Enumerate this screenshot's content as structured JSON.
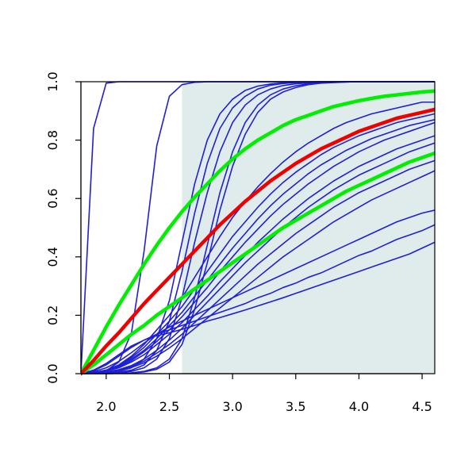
{
  "chart_data": {
    "type": "line",
    "title": "",
    "xlabel": "",
    "ylabel": "",
    "xlim": [
      1.8,
      4.6
    ],
    "ylim": [
      0,
      1
    ],
    "x_ticks": [
      2.0,
      2.5,
      3.0,
      3.5,
      4.0,
      4.5
    ],
    "x_tick_labels": [
      "2.0",
      "2.5",
      "3.0",
      "3.5",
      "4.0",
      "4.5"
    ],
    "y_ticks": [
      0.0,
      0.2,
      0.4,
      0.6,
      0.8,
      1.0
    ],
    "y_tick_labels": [
      "0.0",
      "0.2",
      "0.4",
      "0.6",
      "0.8",
      "1.0"
    ],
    "grid": false,
    "legend": "none",
    "shaded_region": {
      "x": [
        2.6,
        4.6
      ],
      "y": [
        0,
        1
      ],
      "color": "#e0ecec"
    },
    "x": [
      1.8,
      1.9,
      2.0,
      2.1,
      2.2,
      2.3,
      2.4,
      2.5,
      2.6,
      2.7,
      2.8,
      2.9,
      3.0,
      3.1,
      3.2,
      3.3,
      3.4,
      3.5,
      3.6,
      3.7,
      3.8,
      3.9,
      4.0,
      4.1,
      4.2,
      4.3,
      4.4,
      4.5,
      4.6
    ],
    "series": [
      {
        "color": "#1f1fd6",
        "width": 1.6,
        "values": [
          0,
          0.84,
          0.995,
          1,
          1,
          1,
          1,
          1,
          1,
          1,
          1,
          1,
          1,
          1,
          1,
          1,
          1,
          1,
          1,
          1,
          1,
          1,
          1,
          1,
          1,
          1,
          1,
          1,
          1
        ]
      },
      {
        "color": "#1f1fd6",
        "width": 1.6,
        "values": [
          0,
          0.002,
          0.01,
          0.04,
          0.14,
          0.42,
          0.78,
          0.95,
          0.99,
          0.998,
          1,
          1,
          1,
          1,
          1,
          1,
          1,
          1,
          1,
          1,
          1,
          1,
          1,
          1,
          1,
          1,
          1,
          1,
          1
        ]
      },
      {
        "color": "#1f1fd6",
        "width": 1.6,
        "values": [
          0,
          0.001,
          0.003,
          0.008,
          0.02,
          0.05,
          0.12,
          0.25,
          0.45,
          0.65,
          0.8,
          0.89,
          0.94,
          0.97,
          0.985,
          0.992,
          0.996,
          0.998,
          0.999,
          1,
          1,
          1,
          1,
          1,
          1,
          1,
          1,
          1,
          1
        ]
      },
      {
        "color": "#1f1fd6",
        "width": 1.6,
        "values": [
          0,
          0.001,
          0.002,
          0.005,
          0.012,
          0.03,
          0.08,
          0.18,
          0.35,
          0.55,
          0.72,
          0.84,
          0.91,
          0.95,
          0.975,
          0.988,
          0.994,
          0.997,
          0.999,
          1,
          1,
          1,
          1,
          1,
          1,
          1,
          1,
          1,
          1
        ]
      },
      {
        "color": "#1f1fd6",
        "width": 1.6,
        "values": [
          0,
          0.001,
          0.002,
          0.004,
          0.008,
          0.02,
          0.05,
          0.12,
          0.26,
          0.45,
          0.62,
          0.76,
          0.86,
          0.92,
          0.955,
          0.975,
          0.987,
          0.993,
          0.996,
          0.998,
          0.999,
          1,
          1,
          1,
          1,
          1,
          1,
          1,
          1
        ]
      },
      {
        "color": "#1f1fd6",
        "width": 1.6,
        "values": [
          0,
          0.004,
          0.012,
          0.03,
          0.06,
          0.1,
          0.15,
          0.2,
          0.26,
          0.33,
          0.4,
          0.47,
          0.535,
          0.59,
          0.64,
          0.685,
          0.725,
          0.76,
          0.79,
          0.815,
          0.84,
          0.86,
          0.875,
          0.89,
          0.9,
          0.91,
          0.92,
          0.93,
          0.93
        ]
      },
      {
        "color": "#1f1fd6",
        "width": 1.6,
        "values": [
          0,
          0.004,
          0.012,
          0.028,
          0.055,
          0.09,
          0.135,
          0.18,
          0.23,
          0.29,
          0.35,
          0.41,
          0.47,
          0.52,
          0.57,
          0.615,
          0.655,
          0.69,
          0.72,
          0.75,
          0.775,
          0.795,
          0.815,
          0.83,
          0.845,
          0.86,
          0.87,
          0.88,
          0.89
        ]
      },
      {
        "color": "#1f1fd6",
        "width": 1.6,
        "values": [
          0,
          0.004,
          0.011,
          0.025,
          0.05,
          0.08,
          0.12,
          0.165,
          0.21,
          0.265,
          0.32,
          0.375,
          0.43,
          0.48,
          0.53,
          0.575,
          0.615,
          0.65,
          0.685,
          0.715,
          0.74,
          0.765,
          0.785,
          0.805,
          0.82,
          0.835,
          0.85,
          0.86,
          0.87
        ]
      },
      {
        "color": "#1f1fd6",
        "width": 1.6,
        "values": [
          0,
          0.003,
          0.01,
          0.022,
          0.045,
          0.075,
          0.11,
          0.15,
          0.195,
          0.245,
          0.295,
          0.35,
          0.4,
          0.45,
          0.495,
          0.54,
          0.58,
          0.615,
          0.65,
          0.68,
          0.71,
          0.735,
          0.76,
          0.78,
          0.8,
          0.815,
          0.83,
          0.845,
          0.86
        ]
      },
      {
        "color": "#1f1fd6",
        "width": 1.6,
        "values": [
          0,
          0.003,
          0.009,
          0.02,
          0.04,
          0.065,
          0.1,
          0.135,
          0.175,
          0.22,
          0.265,
          0.315,
          0.36,
          0.405,
          0.45,
          0.49,
          0.53,
          0.565,
          0.6,
          0.63,
          0.66,
          0.685,
          0.71,
          0.73,
          0.75,
          0.77,
          0.785,
          0.8,
          0.815
        ]
      },
      {
        "color": "#1f1fd6",
        "width": 1.6,
        "values": [
          0,
          0.002,
          0.006,
          0.014,
          0.028,
          0.05,
          0.08,
          0.115,
          0.155,
          0.2,
          0.245,
          0.29,
          0.335,
          0.38,
          0.42,
          0.46,
          0.5,
          0.535,
          0.57,
          0.6,
          0.63,
          0.655,
          0.68,
          0.7,
          0.72,
          0.74,
          0.76,
          0.775,
          0.79
        ]
      },
      {
        "color": "#1f1fd6",
        "width": 1.6,
        "values": [
          0,
          0.002,
          0.005,
          0.012,
          0.024,
          0.043,
          0.07,
          0.1,
          0.135,
          0.175,
          0.215,
          0.255,
          0.295,
          0.335,
          0.375,
          0.41,
          0.445,
          0.48,
          0.51,
          0.54,
          0.57,
          0.595,
          0.62,
          0.64,
          0.66,
          0.68,
          0.7,
          0.715,
          0.73
        ]
      },
      {
        "color": "#1f1fd6",
        "width": 1.6,
        "values": [
          0,
          0.002,
          0.005,
          0.011,
          0.021,
          0.037,
          0.06,
          0.088,
          0.12,
          0.155,
          0.19,
          0.225,
          0.26,
          0.295,
          0.33,
          0.365,
          0.4,
          0.43,
          0.46,
          0.49,
          0.52,
          0.545,
          0.57,
          0.595,
          0.615,
          0.635,
          0.655,
          0.675,
          0.695
        ]
      },
      {
        "color": "#1f1fd6",
        "width": 1.6,
        "values": [
          0,
          0.007,
          0.02,
          0.042,
          0.072,
          0.105,
          0.135,
          0.16,
          0.18,
          0.2,
          0.22,
          0.24,
          0.26,
          0.28,
          0.3,
          0.32,
          0.34,
          0.36,
          0.38,
          0.4,
          0.42,
          0.44,
          0.46,
          0.48,
          0.5,
          0.52,
          0.535,
          0.55,
          0.56
        ]
      },
      {
        "color": "#1f1fd6",
        "width": 1.6,
        "values": [
          0,
          0.01,
          0.03,
          0.06,
          0.09,
          0.115,
          0.135,
          0.15,
          0.165,
          0.18,
          0.195,
          0.21,
          0.225,
          0.24,
          0.26,
          0.275,
          0.295,
          0.31,
          0.33,
          0.345,
          0.365,
          0.385,
          0.405,
          0.42,
          0.44,
          0.46,
          0.475,
          0.49,
          0.51
        ]
      },
      {
        "color": "#1f1fd6",
        "width": 1.6,
        "values": [
          0,
          0.012,
          0.035,
          0.065,
          0.095,
          0.115,
          0.13,
          0.14,
          0.152,
          0.165,
          0.18,
          0.192,
          0.205,
          0.218,
          0.232,
          0.246,
          0.26,
          0.275,
          0.29,
          0.305,
          0.32,
          0.335,
          0.35,
          0.365,
          0.38,
          0.395,
          0.41,
          0.43,
          0.45
        ]
      },
      {
        "color": "#1f1fd6",
        "width": 1.6,
        "values": [
          0,
          0.0,
          0.0,
          0.001,
          0.003,
          0.008,
          0.02,
          0.05,
          0.12,
          0.26,
          0.44,
          0.62,
          0.76,
          0.86,
          0.92,
          0.955,
          0.975,
          0.986,
          0.993,
          0.996,
          0.998,
          0.999,
          1,
          1,
          1,
          1,
          1,
          1,
          1
        ]
      },
      {
        "color": "#1f1fd6",
        "width": 1.6,
        "values": [
          0,
          0.0,
          0.0,
          0.001,
          0.002,
          0.006,
          0.015,
          0.04,
          0.1,
          0.22,
          0.38,
          0.56,
          0.71,
          0.82,
          0.895,
          0.94,
          0.965,
          0.98,
          0.99,
          0.995,
          0.997,
          0.999,
          1,
          1,
          1,
          1,
          1,
          1,
          1
        ]
      },
      {
        "color": "#00ee00",
        "width": 4.5,
        "values": [
          0,
          0.08,
          0.16,
          0.235,
          0.305,
          0.375,
          0.44,
          0.5,
          0.555,
          0.605,
          0.65,
          0.695,
          0.735,
          0.77,
          0.8,
          0.825,
          0.85,
          0.87,
          0.885,
          0.9,
          0.915,
          0.925,
          0.935,
          0.943,
          0.95,
          0.955,
          0.96,
          0.965,
          0.968
        ]
      },
      {
        "color": "#00ee00",
        "width": 4.5,
        "values": [
          0,
          0.03,
          0.065,
          0.1,
          0.135,
          0.165,
          0.2,
          0.23,
          0.26,
          0.29,
          0.32,
          0.35,
          0.38,
          0.41,
          0.44,
          0.47,
          0.5,
          0.525,
          0.55,
          0.575,
          0.6,
          0.625,
          0.645,
          0.665,
          0.685,
          0.705,
          0.725,
          0.74,
          0.755
        ]
      },
      {
        "color": "#ee0000",
        "width": 4.5,
        "values": [
          0,
          0.045,
          0.095,
          0.14,
          0.19,
          0.24,
          0.285,
          0.33,
          0.375,
          0.42,
          0.465,
          0.51,
          0.55,
          0.59,
          0.625,
          0.66,
          0.69,
          0.72,
          0.745,
          0.77,
          0.79,
          0.81,
          0.83,
          0.845,
          0.86,
          0.875,
          0.885,
          0.895,
          0.905
        ]
      }
    ]
  }
}
